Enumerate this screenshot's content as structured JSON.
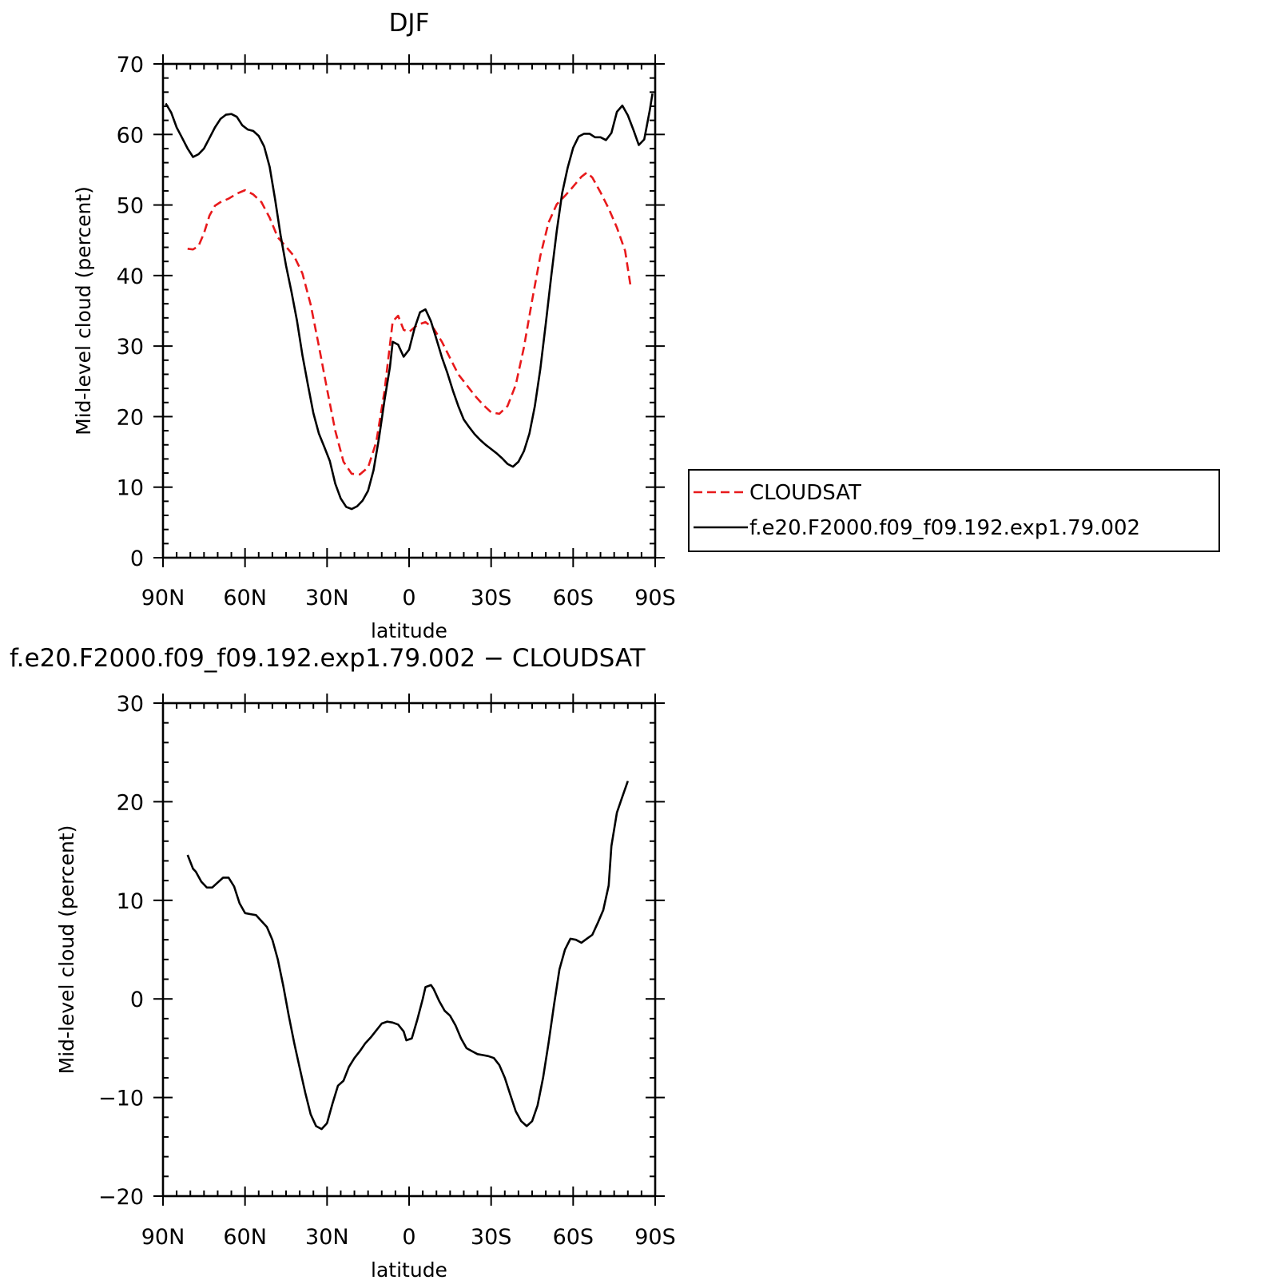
{
  "chart_data": [
    {
      "type": "line",
      "title": "DJF",
      "xlabel": "latitude",
      "ylabel": "Mid-level cloud (percent)",
      "xlim": [
        90,
        -90
      ],
      "ylim": [
        0,
        70
      ],
      "x_ticks": [
        90,
        60,
        30,
        0,
        -30,
        -60,
        -90
      ],
      "x_tick_labels": [
        "90N",
        "60N",
        "30N",
        "0",
        "30S",
        "60S",
        "90S"
      ],
      "y_ticks": [
        0,
        10,
        20,
        30,
        40,
        50,
        60,
        70
      ],
      "y_tick_labels": [
        "0",
        "10",
        "20",
        "30",
        "40",
        "50",
        "60",
        "70"
      ],
      "legend": "right, outside plot",
      "series": [
        {
          "name": "CLOUDSAT",
          "color": "#e8191b",
          "dash": "dashed",
          "points": [
            [
              81,
              43.8
            ],
            [
              79,
              43.7
            ],
            [
              77,
              44.2
            ],
            [
              75,
              46.0
            ],
            [
              73,
              48.5
            ],
            [
              71,
              49.9
            ],
            [
              69,
              50.4
            ],
            [
              66,
              50.9
            ],
            [
              63,
              51.6
            ],
            [
              60,
              52.1
            ],
            [
              57,
              51.5
            ],
            [
              54,
              50.4
            ],
            [
              51,
              48.2
            ],
            [
              48,
              45.4
            ],
            [
              45,
              44.1
            ],
            [
              42,
              42.7
            ],
            [
              39,
              40.3
            ],
            [
              36,
              35.9
            ],
            [
              33,
              30.0
            ],
            [
              30,
              23.9
            ],
            [
              27,
              18.0
            ],
            [
              24,
              13.6
            ],
            [
              21,
              11.9
            ],
            [
              18,
              11.8
            ],
            [
              15,
              12.8
            ],
            [
              12,
              16.4
            ],
            [
              9,
              23.6
            ],
            [
              6,
              33.5
            ],
            [
              4,
              34.3
            ],
            [
              2,
              32.3
            ],
            [
              0,
              32.0
            ],
            [
              -3,
              33.0
            ],
            [
              -6,
              33.4
            ],
            [
              -9,
              32.5
            ],
            [
              -12,
              30.6
            ],
            [
              -15,
              28.3
            ],
            [
              -18,
              26.0
            ],
            [
              -21,
              24.5
            ],
            [
              -24,
              23.0
            ],
            [
              -27,
              21.7
            ],
            [
              -30,
              20.6
            ],
            [
              -33,
              20.4
            ],
            [
              -36,
              21.5
            ],
            [
              -39,
              24.5
            ],
            [
              -42,
              29.8
            ],
            [
              -45,
              36.5
            ],
            [
              -48,
              42.8
            ],
            [
              -51,
              47.5
            ],
            [
              -54,
              50.1
            ],
            [
              -57,
              51.3
            ],
            [
              -60,
              52.6
            ],
            [
              -63,
              54.0
            ],
            [
              -65,
              54.6
            ],
            [
              -67,
              53.9
            ],
            [
              -70,
              51.8
            ],
            [
              -73,
              49.5
            ],
            [
              -76,
              46.8
            ],
            [
              -79,
              43.5
            ],
            [
              -81,
              38.5
            ]
          ]
        },
        {
          "name": "f.e20.F2000.f09_f09.192.exp1.79.002",
          "color": "#000000",
          "dash": "solid",
          "points": [
            [
              89,
              64.4
            ],
            [
              87,
              63.1
            ],
            [
              85,
              61.0
            ],
            [
              83,
              59.5
            ],
            [
              81,
              58.0
            ],
            [
              79,
              56.8
            ],
            [
              77,
              57.2
            ],
            [
              75,
              58.0
            ],
            [
              73,
              59.5
            ],
            [
              71,
              61.0
            ],
            [
              69,
              62.2
            ],
            [
              67,
              62.8
            ],
            [
              65,
              62.9
            ],
            [
              63,
              62.5
            ],
            [
              61,
              61.3
            ],
            [
              59,
              60.7
            ],
            [
              57,
              60.5
            ],
            [
              55,
              59.8
            ],
            [
              53,
              58.3
            ],
            [
              51,
              55.4
            ],
            [
              49,
              50.8
            ],
            [
              47,
              45.7
            ],
            [
              45,
              41.4
            ],
            [
              43,
              37.7
            ],
            [
              41,
              33.6
            ],
            [
              39,
              28.7
            ],
            [
              37,
              24.5
            ],
            [
              35,
              20.5
            ],
            [
              33,
              17.6
            ],
            [
              31,
              15.7
            ],
            [
              29,
              13.7
            ],
            [
              27,
              10.5
            ],
            [
              25,
              8.4
            ],
            [
              23,
              7.2
            ],
            [
              21,
              6.9
            ],
            [
              19,
              7.3
            ],
            [
              17,
              8.1
            ],
            [
              15,
              9.5
            ],
            [
              13,
              12.4
            ],
            [
              11,
              17.0
            ],
            [
              9,
              22.3
            ],
            [
              7,
              27.0
            ],
            [
              6,
              30.6
            ],
            [
              4,
              30.2
            ],
            [
              2,
              28.5
            ],
            [
              0,
              29.5
            ],
            [
              -2,
              32.5
            ],
            [
              -4,
              34.8
            ],
            [
              -6,
              35.2
            ],
            [
              -8,
              33.5
            ],
            [
              -10,
              31.0
            ],
            [
              -12,
              28.4
            ],
            [
              -14,
              26.2
            ],
            [
              -16,
              23.7
            ],
            [
              -18,
              21.5
            ],
            [
              -20,
              19.6
            ],
            [
              -22,
              18.5
            ],
            [
              -24,
              17.5
            ],
            [
              -26,
              16.7
            ],
            [
              -28,
              16.0
            ],
            [
              -30,
              15.4
            ],
            [
              -32,
              14.8
            ],
            [
              -34,
              14.1
            ],
            [
              -36,
              13.3
            ],
            [
              -38,
              12.9
            ],
            [
              -40,
              13.6
            ],
            [
              -42,
              15.1
            ],
            [
              -44,
              17.6
            ],
            [
              -46,
              21.5
            ],
            [
              -48,
              26.8
            ],
            [
              -50,
              33.2
            ],
            [
              -52,
              40.0
            ],
            [
              -54,
              46.3
            ],
            [
              -56,
              51.7
            ],
            [
              -58,
              55.3
            ],
            [
              -60,
              58.1
            ],
            [
              -62,
              59.7
            ],
            [
              -64,
              60.1
            ],
            [
              -66,
              60.1
            ],
            [
              -68,
              59.6
            ],
            [
              -70,
              59.6
            ],
            [
              -72,
              59.2
            ],
            [
              -74,
              60.2
            ],
            [
              -76,
              63.2
            ],
            [
              -78,
              64.1
            ],
            [
              -80,
              62.7
            ],
            [
              -82,
              60.7
            ],
            [
              -84,
              58.5
            ],
            [
              -86,
              59.3
            ],
            [
              -88,
              63.4
            ],
            [
              -89,
              65.8
            ]
          ]
        }
      ]
    },
    {
      "type": "line",
      "title": "f.e20.F2000.f09_f09.192.exp1.79.002 − CLOUDSAT",
      "xlabel": "latitude",
      "ylabel": "Mid-level cloud (percent)",
      "xlim": [
        90,
        -90
      ],
      "ylim": [
        -20,
        30
      ],
      "x_ticks": [
        90,
        60,
        30,
        0,
        -30,
        -60,
        -90
      ],
      "x_tick_labels": [
        "90N",
        "60N",
        "30N",
        "0",
        "30S",
        "60S",
        "90S"
      ],
      "y_ticks": [
        -20,
        -10,
        0,
        10,
        20,
        30
      ],
      "y_tick_labels": [
        "−20",
        "−10",
        "0",
        "10",
        "20",
        "30"
      ],
      "series": [
        {
          "name": "",
          "color": "#000000",
          "dash": "solid",
          "points": [
            [
              81,
              14.6
            ],
            [
              79,
              13.2
            ],
            [
              78,
              12.9
            ],
            [
              76,
              11.9
            ],
            [
              74,
              11.3
            ],
            [
              72,
              11.3
            ],
            [
              70,
              11.8
            ],
            [
              68,
              12.3
            ],
            [
              66,
              12.3
            ],
            [
              64,
              11.4
            ],
            [
              62,
              9.7
            ],
            [
              60,
              8.7
            ],
            [
              58,
              8.6
            ],
            [
              56,
              8.5
            ],
            [
              54,
              7.9
            ],
            [
              52,
              7.3
            ],
            [
              50,
              6.0
            ],
            [
              48,
              4.0
            ],
            [
              46,
              1.3
            ],
            [
              44,
              -1.7
            ],
            [
              42,
              -4.5
            ],
            [
              40,
              -7.0
            ],
            [
              38,
              -9.5
            ],
            [
              36,
              -11.7
            ],
            [
              34,
              -12.9
            ],
            [
              32,
              -13.2
            ],
            [
              30,
              -12.6
            ],
            [
              28,
              -10.6
            ],
            [
              26,
              -8.8
            ],
            [
              24,
              -8.3
            ],
            [
              22,
              -6.9
            ],
            [
              20,
              -6.0
            ],
            [
              18,
              -5.3
            ],
            [
              16,
              -4.5
            ],
            [
              14,
              -3.9
            ],
            [
              12,
              -3.2
            ],
            [
              10,
              -2.5
            ],
            [
              8,
              -2.3
            ],
            [
              6,
              -2.4
            ],
            [
              4,
              -2.6
            ],
            [
              2,
              -3.3
            ],
            [
              1,
              -4.2
            ],
            [
              -1,
              -4.0
            ],
            [
              -3,
              -2.1
            ],
            [
              -5,
              0.0
            ],
            [
              -6,
              1.2
            ],
            [
              -8,
              1.4
            ],
            [
              -9,
              1.0
            ],
            [
              -11,
              -0.2
            ],
            [
              -13,
              -1.2
            ],
            [
              -15,
              -1.7
            ],
            [
              -17,
              -2.7
            ],
            [
              -19,
              -4.0
            ],
            [
              -21,
              -5.0
            ],
            [
              -23,
              -5.3
            ],
            [
              -25,
              -5.6
            ],
            [
              -27,
              -5.7
            ],
            [
              -29,
              -5.8
            ],
            [
              -31,
              -6.0
            ],
            [
              -33,
              -6.7
            ],
            [
              -35,
              -8.0
            ],
            [
              -37,
              -9.7
            ],
            [
              -39,
              -11.4
            ],
            [
              -41,
              -12.4
            ],
            [
              -43,
              -12.9
            ],
            [
              -45,
              -12.4
            ],
            [
              -47,
              -10.8
            ],
            [
              -49,
              -8.0
            ],
            [
              -51,
              -4.5
            ],
            [
              -53,
              -0.6
            ],
            [
              -55,
              3.0
            ],
            [
              -57,
              5.0
            ],
            [
              -59,
              6.1
            ],
            [
              -61,
              6.0
            ],
            [
              -63,
              5.7
            ],
            [
              -65,
              6.1
            ],
            [
              -67,
              6.5
            ],
            [
              -69,
              7.7
            ],
            [
              -71,
              9.0
            ],
            [
              -73,
              11.5
            ],
            [
              -74,
              15.5
            ],
            [
              -76,
              18.9
            ],
            [
              -78,
              20.5
            ],
            [
              -80,
              22.1
            ]
          ]
        }
      ]
    }
  ]
}
